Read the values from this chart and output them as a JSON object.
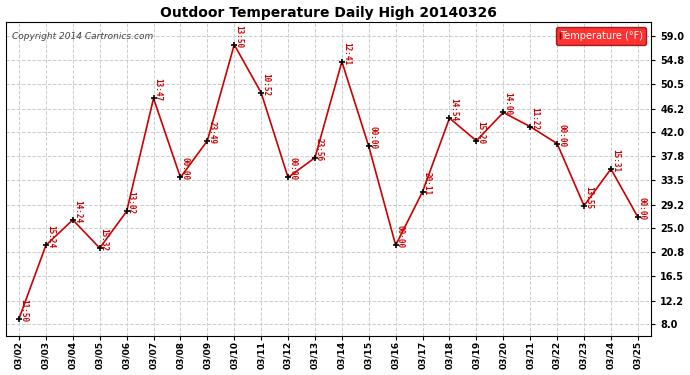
{
  "title": "Outdoor Temperature Daily High 20140326",
  "copyright": "Copyright 2014 Cartronics.com",
  "legend_label": "Temperature (°F)",
  "dates": [
    "03/02",
    "03/03",
    "03/04",
    "03/05",
    "03/06",
    "03/07",
    "03/08",
    "03/09",
    "03/10",
    "03/11",
    "03/12",
    "03/13",
    "03/14",
    "03/15",
    "03/16",
    "03/17",
    "03/18",
    "03/19",
    "03/20",
    "03/21",
    "03/22",
    "03/23",
    "03/24",
    "03/25"
  ],
  "temps": [
    9.0,
    22.0,
    26.5,
    21.5,
    28.0,
    48.0,
    34.0,
    40.5,
    57.5,
    49.0,
    34.0,
    37.5,
    54.5,
    39.5,
    22.0,
    31.5,
    44.5,
    40.5,
    45.5,
    43.0,
    40.0,
    29.0,
    35.5,
    27.0
  ],
  "time_labels": [
    "11:50",
    "15:24",
    "14:24",
    "15:32",
    "13:02",
    "13:47",
    "00:00",
    "23:49",
    "13:50",
    "10:52",
    "00:00",
    "23:56",
    "12:41",
    "00:00",
    "00:00",
    "20:11",
    "14:54",
    "15:20",
    "14:00",
    "11:22",
    "00:00",
    "13:55",
    "15:31",
    "00:00"
  ],
  "line_color": "#cc0000",
  "marker_color": "#000000",
  "text_color": "#cc0000",
  "grid_color": "#cccccc",
  "bg_color": "#ffffff",
  "yticks": [
    8.0,
    12.2,
    16.5,
    20.8,
    25.0,
    29.2,
    33.5,
    37.8,
    42.0,
    46.2,
    50.5,
    54.8,
    59.0
  ],
  "ylim": [
    6.0,
    61.5
  ],
  "xlim": [
    -0.5,
    23.5
  ],
  "figsize": [
    6.9,
    3.75
  ],
  "dpi": 100
}
